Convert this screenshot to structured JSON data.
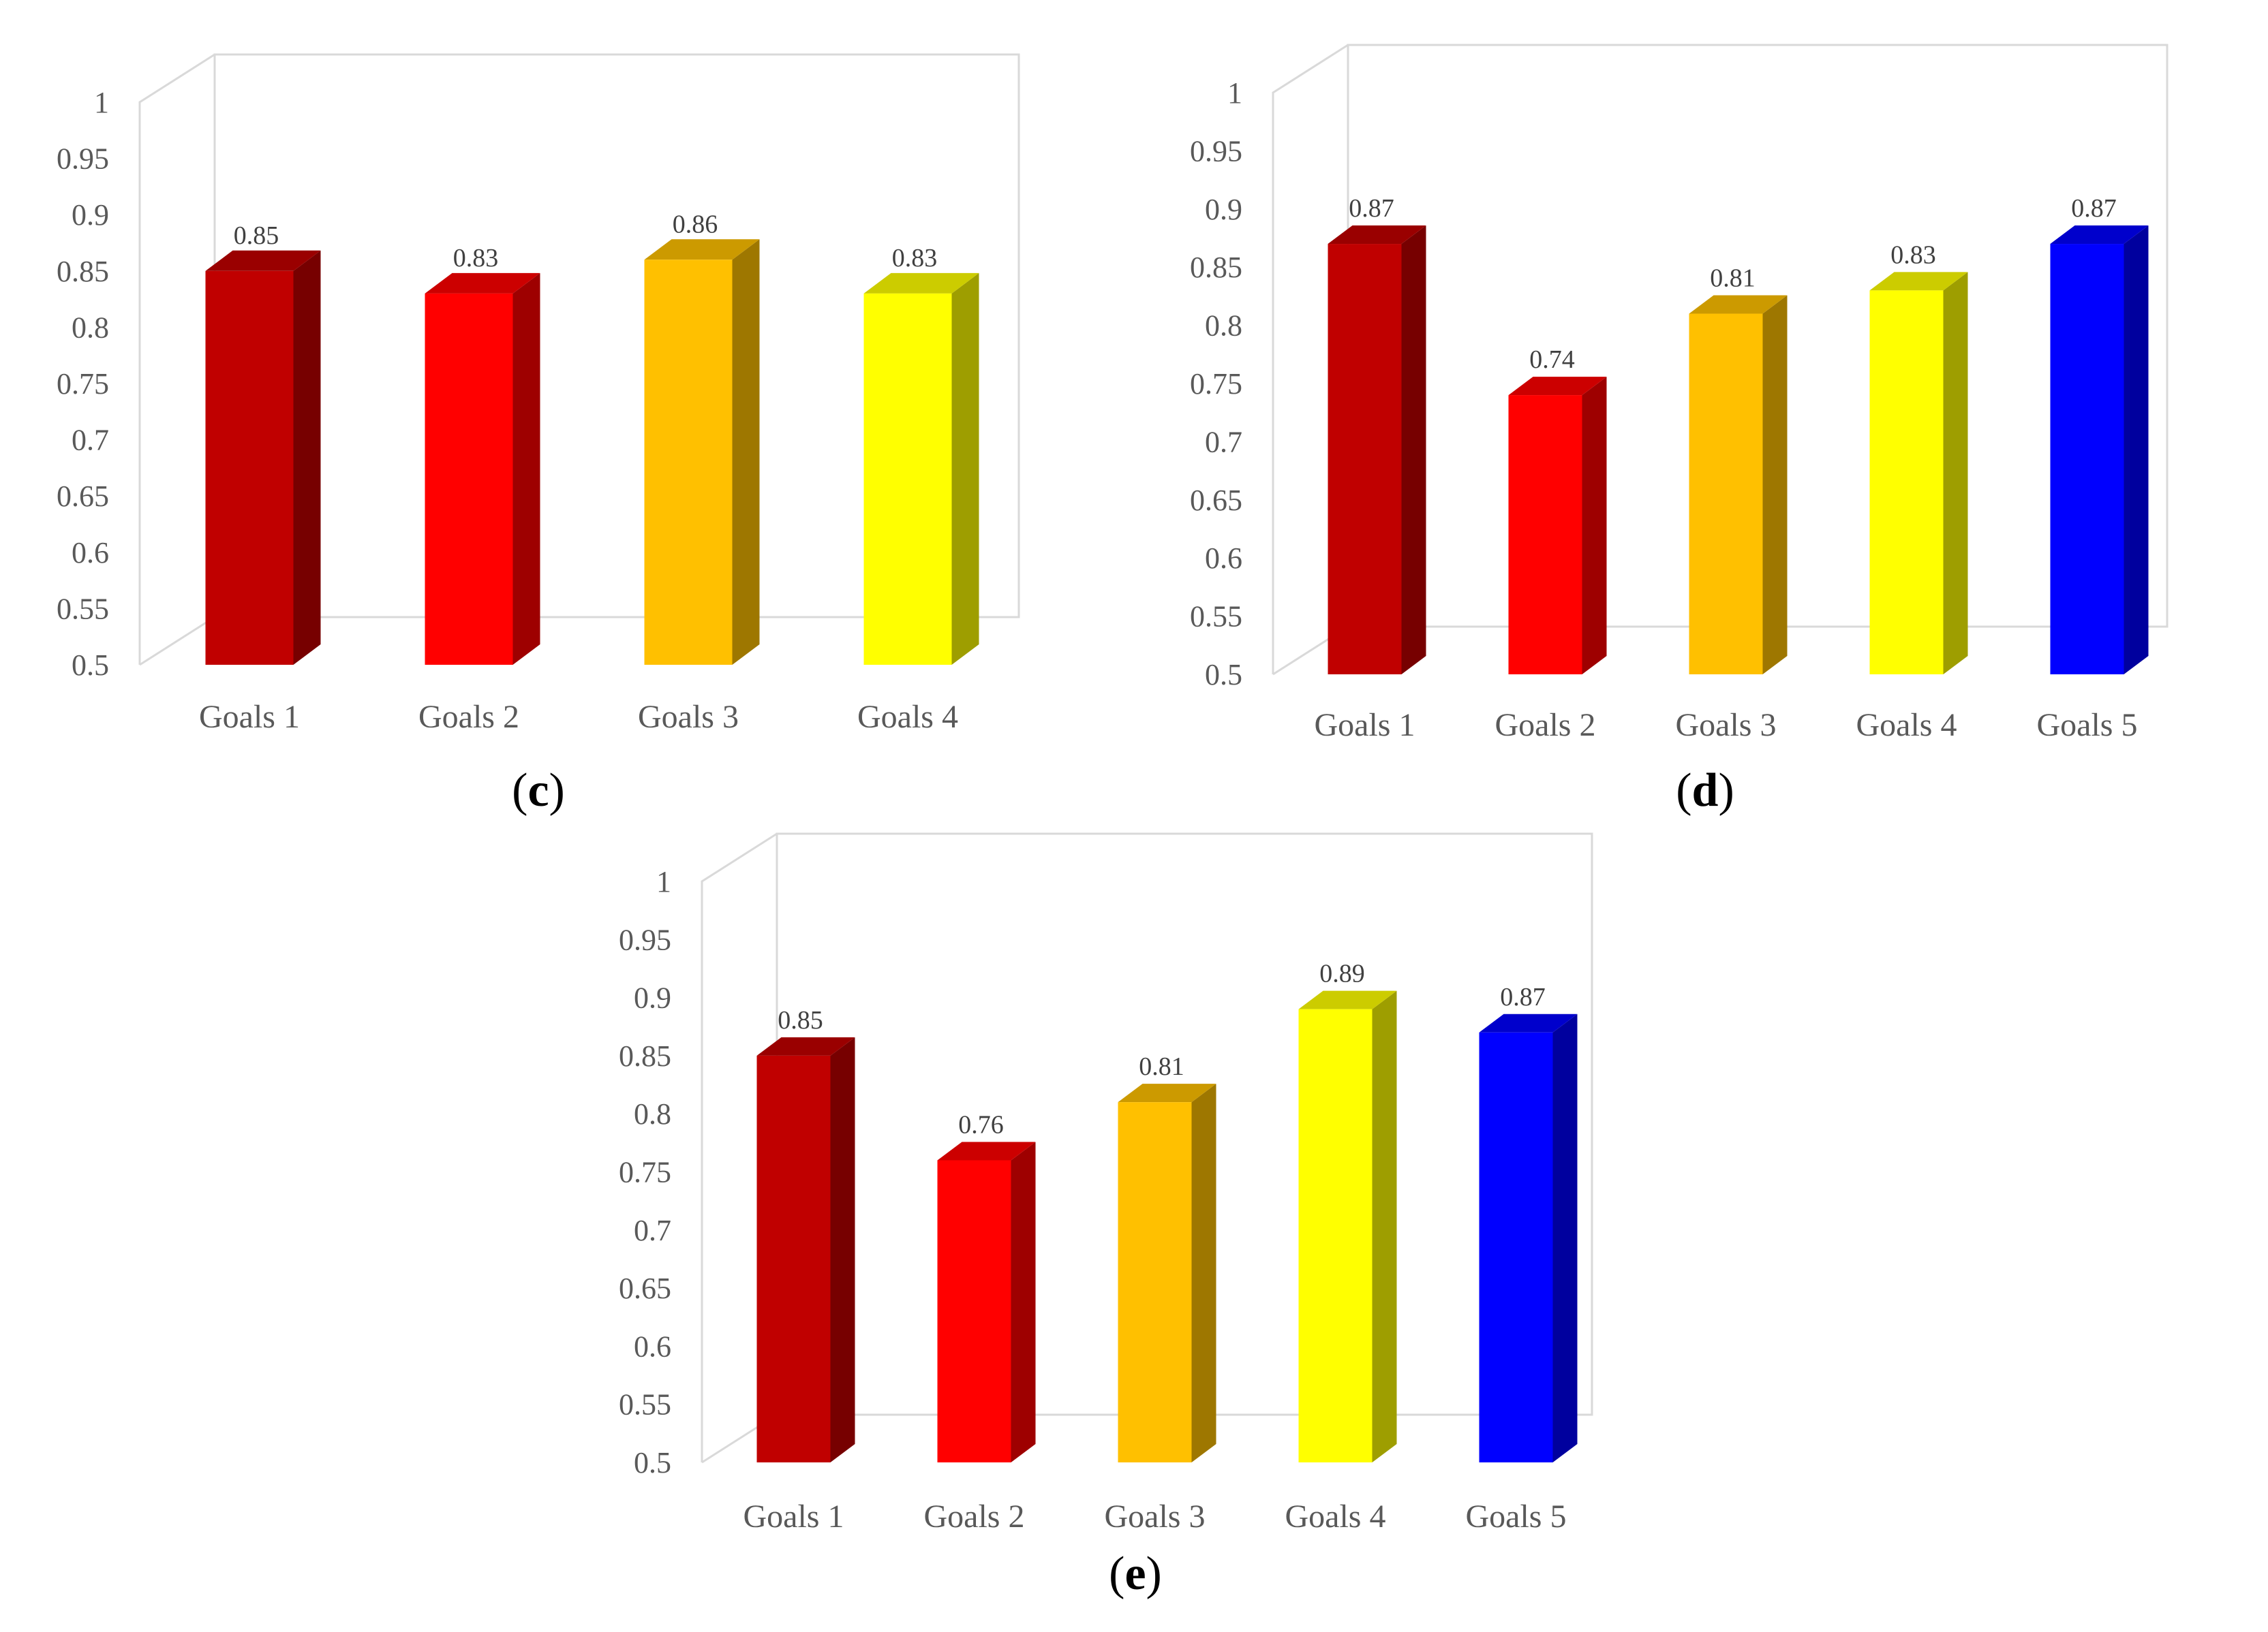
{
  "chart_data": [
    {
      "type": "bar",
      "panel": "c",
      "caption_open": "(",
      "caption_letter": "c",
      "caption_close": ")",
      "categories": [
        "Goals 1",
        "Goals 2",
        "Goals 3",
        "Goals 4"
      ],
      "values": [
        0.85,
        0.83,
        0.86,
        0.83
      ],
      "value_labels": [
        "0.85",
        "0.83",
        "0.86",
        "0.83"
      ],
      "colors": [
        "#C00000",
        "#FF0000",
        "#FFC000",
        "#FFFF00"
      ],
      "ylim": [
        0.5,
        1
      ],
      "yticks": [
        "0.5",
        "0.55",
        "0.6",
        "0.65",
        "0.7",
        "0.75",
        "0.8",
        "0.85",
        "0.9",
        "0.95",
        "1"
      ],
      "style": "3d-column",
      "grid": false,
      "title": "",
      "xlabel": "",
      "ylabel": ""
    },
    {
      "type": "bar",
      "panel": "d",
      "caption_open": "(",
      "caption_letter": "d",
      "caption_close": ")",
      "categories": [
        "Goals 1",
        "Goals 2",
        "Goals 3",
        "Goals 4",
        "Goals 5"
      ],
      "values": [
        0.87,
        0.74,
        0.81,
        0.83,
        0.87
      ],
      "value_labels": [
        "0.87",
        "0.74",
        "0.81",
        "0.83",
        "0.87"
      ],
      "colors": [
        "#C00000",
        "#FF0000",
        "#FFC000",
        "#FFFF00",
        "#0000FF"
      ],
      "ylim": [
        0.5,
        1
      ],
      "yticks": [
        "0.5",
        "0.55",
        "0.6",
        "0.65",
        "0.7",
        "0.75",
        "0.8",
        "0.85",
        "0.9",
        "0.95",
        "1"
      ],
      "style": "3d-column",
      "grid": false,
      "title": "",
      "xlabel": "",
      "ylabel": ""
    },
    {
      "type": "bar",
      "panel": "e",
      "caption_open": "(",
      "caption_letter": "e",
      "caption_close": ")",
      "categories": [
        "Goals 1",
        "Goals 2",
        "Goals 3",
        "Goals 4",
        "Goals 5"
      ],
      "values": [
        0.85,
        0.76,
        0.81,
        0.89,
        0.87
      ],
      "value_labels": [
        "0.85",
        "0.76",
        "0.81",
        "0.89",
        "0.87"
      ],
      "colors": [
        "#C00000",
        "#FF0000",
        "#FFC000",
        "#FFFF00",
        "#0000FF"
      ],
      "ylim": [
        0.5,
        1
      ],
      "yticks": [
        "0.5",
        "0.55",
        "0.6",
        "0.65",
        "0.7",
        "0.75",
        "0.8",
        "0.85",
        "0.9",
        "0.95",
        "1"
      ],
      "style": "3d-column",
      "grid": false,
      "title": "",
      "xlabel": "",
      "ylabel": ""
    }
  ]
}
